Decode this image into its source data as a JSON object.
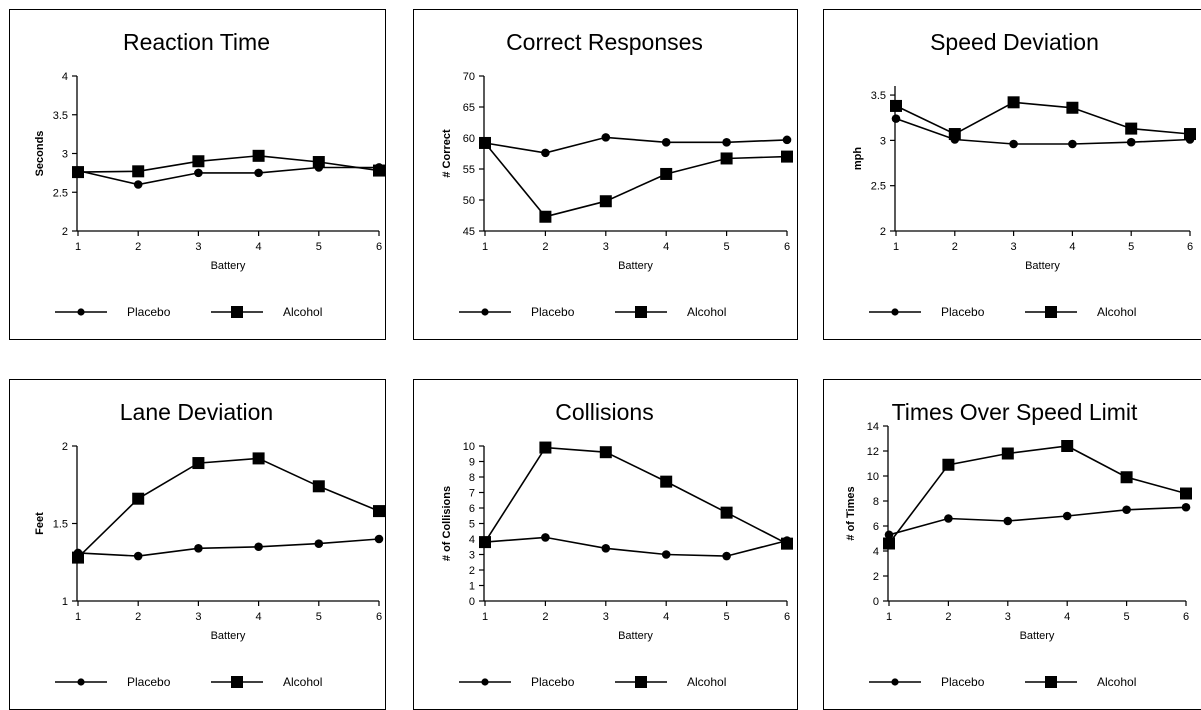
{
  "chart_data": [
    {
      "type": "line",
      "title": "Reaction Time",
      "xlabel": "Battery",
      "ylabel": "Seconds",
      "categories": [
        "1",
        "2",
        "3",
        "4",
        "5",
        "6"
      ],
      "ylim": [
        2,
        4
      ],
      "yticks": [
        "2",
        "2.5",
        "3",
        "3.5",
        "4"
      ],
      "legend": "bottom",
      "series": [
        {
          "name": "Placebo",
          "marker": "circle",
          "values": [
            2.78,
            2.6,
            2.75,
            2.75,
            2.82,
            2.82
          ]
        },
        {
          "name": "Alcohol",
          "marker": "square",
          "values": [
            2.76,
            2.77,
            2.9,
            2.97,
            2.89,
            2.78
          ]
        }
      ]
    },
    {
      "type": "line",
      "title": "Correct Responses",
      "xlabel": "Battery",
      "ylabel": "# Correct",
      "categories": [
        "1",
        "2",
        "3",
        "4",
        "5",
        "6"
      ],
      "ylim": [
        45,
        70
      ],
      "yticks": [
        "45",
        "50",
        "55",
        "60",
        "65",
        "70"
      ],
      "legend": "bottom",
      "series": [
        {
          "name": "Placebo",
          "marker": "circle",
          "values": [
            59.2,
            57.6,
            60.1,
            59.3,
            59.3,
            59.7
          ]
        },
        {
          "name": "Alcohol",
          "marker": "square",
          "values": [
            59.2,
            47.3,
            49.8,
            54.2,
            56.7,
            57
          ]
        }
      ]
    },
    {
      "type": "line",
      "title": "Speed Deviation",
      "xlabel": "Battery",
      "ylabel": "mph",
      "categories": [
        "1",
        "2",
        "3",
        "4",
        "5",
        "6"
      ],
      "ylim": [
        2,
        3.6
      ],
      "yticks": [
        "2",
        "2.5",
        "3",
        "3.5"
      ],
      "legend": "bottom",
      "series": [
        {
          "name": "Placebo",
          "marker": "circle",
          "values": [
            3.24,
            3.01,
            2.96,
            2.96,
            2.98,
            3.01
          ]
        },
        {
          "name": "Alcohol",
          "marker": "square",
          "values": [
            3.38,
            3.07,
            3.42,
            3.36,
            3.13,
            3.07
          ]
        }
      ]
    },
    {
      "type": "line",
      "title": "Lane Deviation",
      "xlabel": "Battery",
      "ylabel": "Feet",
      "categories": [
        "1",
        "2",
        "3",
        "4",
        "5",
        "6"
      ],
      "ylim": [
        1,
        2
      ],
      "yticks": [
        "1",
        "1.5",
        "2"
      ],
      "legend": "bottom",
      "series": [
        {
          "name": "Placebo",
          "marker": "circle",
          "values": [
            1.31,
            1.29,
            1.34,
            1.35,
            1.37,
            1.4
          ]
        },
        {
          "name": "Alcohol",
          "marker": "square",
          "values": [
            1.28,
            1.66,
            1.89,
            1.92,
            1.74,
            1.58
          ]
        }
      ]
    },
    {
      "type": "line",
      "title": "Collisions",
      "xlabel": "Battery",
      "ylabel": "# of Collisions",
      "categories": [
        "1",
        "2",
        "3",
        "4",
        "5",
        "6"
      ],
      "ylim": [
        0,
        10
      ],
      "yticks": [
        "0",
        "1",
        "2",
        "3",
        "4",
        "5",
        "6",
        "7",
        "8",
        "9",
        "10"
      ],
      "legend": "bottom",
      "series": [
        {
          "name": "Placebo",
          "marker": "circle",
          "values": [
            3.8,
            4.1,
            3.4,
            3.0,
            2.9,
            3.9
          ]
        },
        {
          "name": "Alcohol",
          "marker": "square",
          "values": [
            3.8,
            9.9,
            9.6,
            7.7,
            5.7,
            3.7
          ]
        }
      ]
    },
    {
      "type": "line",
      "title": "Times Over Speed Limit",
      "xlabel": "Battery",
      "ylabel": "# of Times",
      "categories": [
        "1",
        "2",
        "3",
        "4",
        "5",
        "6"
      ],
      "ylim": [
        0,
        14
      ],
      "yticks": [
        "0",
        "2",
        "4",
        "6",
        "8",
        "10",
        "12",
        "14"
      ],
      "legend": "bottom",
      "series": [
        {
          "name": "Placebo",
          "marker": "circle",
          "values": [
            5.3,
            6.6,
            6.4,
            6.8,
            7.3,
            7.5
          ]
        },
        {
          "name": "Alcohol",
          "marker": "square",
          "values": [
            4.6,
            10.9,
            11.8,
            12.4,
            9.9,
            8.6
          ]
        }
      ]
    }
  ]
}
